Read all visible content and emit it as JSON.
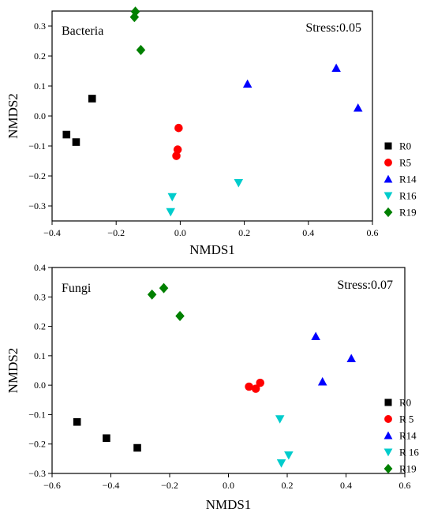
{
  "chart_data": [
    {
      "type": "scatter",
      "panel_label": "Bacteria",
      "stress": "Stress:0.05",
      "xlabel": "NMDS1",
      "ylabel": "NMDS2",
      "xlim": [
        -0.4,
        0.6
      ],
      "ylim": [
        -0.35,
        0.35
      ],
      "xticks": [
        -0.4,
        -0.2,
        0.0,
        0.2,
        0.4,
        0.6
      ],
      "xtick_labels": [
        "−0.4",
        "−0.2",
        "0.0",
        "0.2",
        "0.4",
        "0.6"
      ],
      "yticks": [
        -0.3,
        -0.2,
        -0.1,
        0.0,
        0.1,
        0.2,
        0.3
      ],
      "ytick_labels": [
        "−0.3",
        "−0.2",
        "−0.1",
        "0.0",
        "0.1",
        "0.2",
        "0.3"
      ],
      "grid": false,
      "legend_position": "right",
      "series": [
        {
          "name": "R0",
          "marker": "square",
          "color": "#000000",
          "points": [
            [
              -0.275,
              0.058
            ],
            [
              -0.355,
              -0.062
            ],
            [
              -0.325,
              -0.087
            ]
          ]
        },
        {
          "name": "R5",
          "marker": "circle",
          "color": "#ff0000",
          "points": [
            [
              -0.005,
              -0.04
            ],
            [
              -0.008,
              -0.112
            ],
            [
              -0.012,
              -0.133
            ]
          ]
        },
        {
          "name": "R14",
          "marker": "triangle-up",
          "color": "#0000ff",
          "points": [
            [
              0.21,
              0.107
            ],
            [
              0.487,
              0.16
            ],
            [
              0.555,
              0.027
            ]
          ]
        },
        {
          "name": "R16",
          "marker": "triangle-down",
          "color": "#00cccc",
          "points": [
            [
              -0.025,
              -0.27
            ],
            [
              -0.03,
              -0.32
            ],
            [
              0.182,
              -0.223
            ]
          ]
        },
        {
          "name": "R19",
          "marker": "diamond",
          "color": "#008000",
          "points": [
            [
              -0.14,
              0.348
            ],
            [
              -0.143,
              0.33
            ],
            [
              -0.123,
              0.22
            ]
          ]
        }
      ]
    },
    {
      "type": "scatter",
      "panel_label": "Fungi",
      "stress": "Stress:0.07",
      "xlabel": "NMDS1",
      "ylabel": "NMDS2",
      "xlim": [
        -0.6,
        0.6
      ],
      "ylim": [
        -0.3,
        0.4
      ],
      "xticks": [
        -0.6,
        -0.4,
        -0.2,
        0.0,
        0.2,
        0.4,
        0.6
      ],
      "xtick_labels": [
        "−0.6",
        "−0.4",
        "−0.2",
        "0.0",
        "0.2",
        "0.4",
        "0.6"
      ],
      "yticks": [
        -0.3,
        -0.2,
        -0.1,
        0.0,
        0.1,
        0.2,
        0.3,
        0.4
      ],
      "ytick_labels": [
        "−0.3",
        "−0.2",
        "−0.1",
        "0.0",
        "0.1",
        "0.2",
        "0.3",
        "0.4"
      ],
      "grid": false,
      "legend_position": "right",
      "series": [
        {
          "name": "R0",
          "marker": "square",
          "color": "#000000",
          "points": [
            [
              -0.515,
              -0.125
            ],
            [
              -0.415,
              -0.18
            ],
            [
              -0.31,
              -0.213
            ]
          ]
        },
        {
          "name": "R 5",
          "marker": "circle",
          "color": "#ff0000",
          "points": [
            [
              0.07,
              -0.005
            ],
            [
              0.093,
              -0.012
            ],
            [
              0.108,
              0.008
            ]
          ]
        },
        {
          "name": "R14",
          "marker": "triangle-up",
          "color": "#0000ff",
          "points": [
            [
              0.297,
              0.166
            ],
            [
              0.418,
              0.091
            ],
            [
              0.32,
              0.012
            ]
          ]
        },
        {
          "name": "R 16",
          "marker": "triangle-down",
          "color": "#00cccc",
          "points": [
            [
              0.175,
              -0.115
            ],
            [
              0.205,
              -0.238
            ],
            [
              0.18,
              -0.265
            ]
          ]
        },
        {
          "name": "R19",
          "marker": "diamond",
          "color": "#008000",
          "points": [
            [
              -0.22,
              0.33
            ],
            [
              -0.26,
              0.308
            ],
            [
              -0.165,
              0.235
            ]
          ]
        }
      ]
    }
  ]
}
